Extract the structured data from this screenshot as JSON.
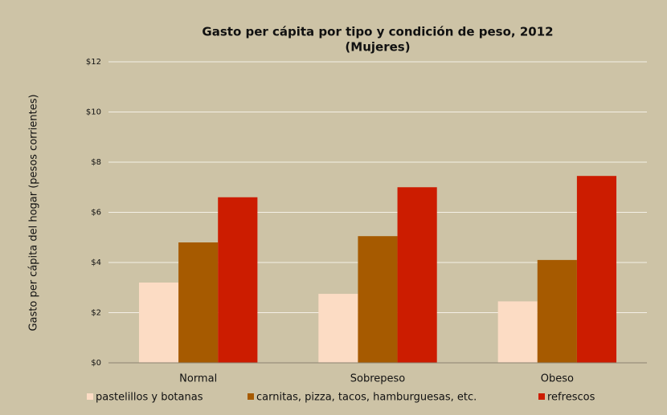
{
  "chart_data": {
    "type": "bar",
    "title": "Gasto per cápita por tipo y condición de peso, 2012",
    "subtitle": "(Mujeres)",
    "y_label": "Gasto per cápita del hogar (pesos corrientes)",
    "categories": [
      "Normal",
      "Sobrepeso",
      "Obeso"
    ],
    "series": [
      {
        "name": "pastelillos y botanas",
        "color": "#fcdcc4",
        "values": [
          3.2,
          2.75,
          2.45
        ]
      },
      {
        "name": "carnitas, pizza, tacos, hamburguesas, etc.",
        "color": "#a65a00",
        "values": [
          4.8,
          5.05,
          4.1
        ]
      },
      {
        "name": "refrescos",
        "color": "#cc1c00",
        "values": [
          6.6,
          7.0,
          7.45
        ]
      }
    ],
    "ylim": [
      0,
      12
    ],
    "yticks": [
      {
        "value": 0,
        "label": "$0"
      },
      {
        "value": 2,
        "label": "$2"
      },
      {
        "value": 4,
        "label": "$4"
      },
      {
        "value": 6,
        "label": "$6"
      },
      {
        "value": 8,
        "label": "$8"
      },
      {
        "value": 10,
        "label": "$10"
      },
      {
        "value": 12,
        "label": "$12"
      }
    ],
    "grid": true,
    "legend": "bottom"
  }
}
